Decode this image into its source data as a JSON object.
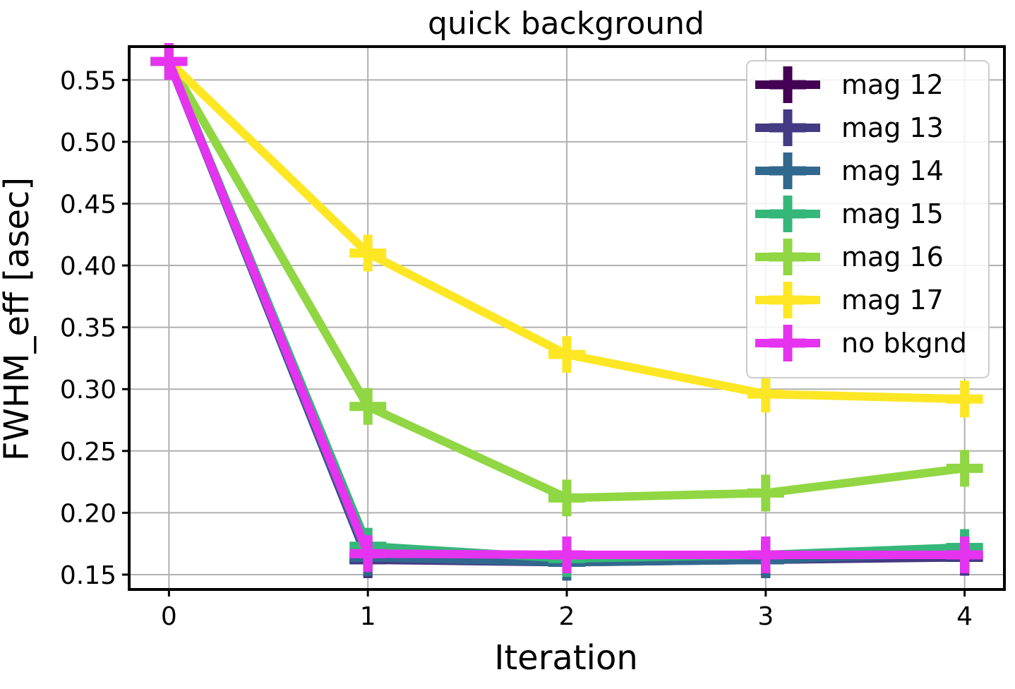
{
  "chart_data": {
    "type": "line",
    "title": "quick background",
    "xlabel": "Iteration",
    "ylabel": "FWHM_eff [asec]",
    "x": [
      0,
      1,
      2,
      3,
      4
    ],
    "xlim": [
      -0.2,
      4.2
    ],
    "ylim": [
      0.138,
      0.577
    ],
    "xticks": [
      "0",
      "1",
      "2",
      "3",
      "4"
    ],
    "yticks": [
      "0.15",
      "0.20",
      "0.25",
      "0.30",
      "0.35",
      "0.40",
      "0.45",
      "0.50",
      "0.55"
    ],
    "grid": true,
    "legend_position": "top-right",
    "markers": "plus",
    "series": [
      {
        "name": "mag 12",
        "color": "#440154",
        "values": [
          0.565,
          0.163,
          0.161,
          0.163,
          0.165
        ]
      },
      {
        "name": "mag 13",
        "color": "#443983",
        "values": [
          0.565,
          0.162,
          0.16,
          0.162,
          0.164
        ]
      },
      {
        "name": "mag 14",
        "color": "#31688e",
        "values": [
          0.565,
          0.164,
          0.16,
          0.162,
          0.168
        ]
      },
      {
        "name": "mag 15",
        "color": "#35b779",
        "values": [
          0.565,
          0.173,
          0.163,
          0.166,
          0.172
        ]
      },
      {
        "name": "mag 16",
        "color": "#90d743",
        "values": [
          0.565,
          0.286,
          0.212,
          0.216,
          0.236
        ]
      },
      {
        "name": "mag 17",
        "color": "#fde725",
        "values": [
          0.565,
          0.41,
          0.328,
          0.296,
          0.292
        ]
      },
      {
        "name": "no bkgnd",
        "color": "#e633f0",
        "values": [
          0.565,
          0.167,
          0.166,
          0.166,
          0.166
        ]
      }
    ]
  }
}
